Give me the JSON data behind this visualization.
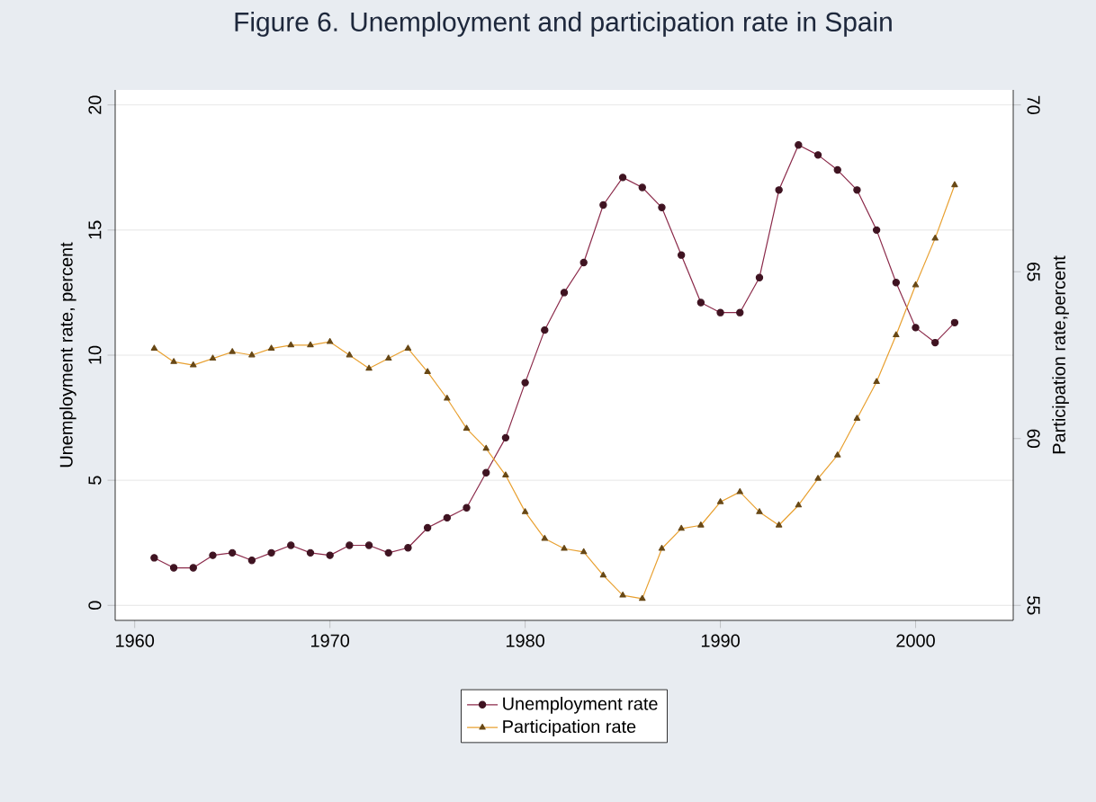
{
  "chart_data": {
    "type": "line",
    "title": "Figure 6. Unemployment and participation rate in Spain",
    "ylabel": "Unemployment rate, percent",
    "y2label": "Participation rate,percent",
    "x": [
      1961,
      1962,
      1963,
      1964,
      1965,
      1966,
      1967,
      1968,
      1969,
      1970,
      1971,
      1972,
      1973,
      1974,
      1975,
      1976,
      1977,
      1978,
      1979,
      1980,
      1981,
      1982,
      1983,
      1984,
      1985,
      1986,
      1987,
      1988,
      1989,
      1990,
      1991,
      1992,
      1993,
      1994,
      1995,
      1996,
      1997,
      1998,
      1999,
      2000,
      2001,
      2002
    ],
    "series": [
      {
        "name": "Unemployment rate",
        "color": "#8b2a4a",
        "marker": "circle",
        "values": [
          1.9,
          1.5,
          1.5,
          2.0,
          2.1,
          1.8,
          2.1,
          2.4,
          2.1,
          2.0,
          2.4,
          2.4,
          2.1,
          2.3,
          3.1,
          3.5,
          3.9,
          5.3,
          6.7,
          8.9,
          11.0,
          12.5,
          13.7,
          16.0,
          17.1,
          16.7,
          15.9,
          14.0,
          12.1,
          11.7,
          11.7,
          13.1,
          16.6,
          18.4,
          18.0,
          17.4,
          16.6,
          15.0,
          12.9,
          11.1,
          10.5,
          11.3
        ]
      },
      {
        "name": "Participation rate",
        "color": "#e8a030",
        "marker": "triangle",
        "axis": "y2",
        "values": [
          62.7,
          62.3,
          62.2,
          62.4,
          62.6,
          62.5,
          62.7,
          62.8,
          62.8,
          62.9,
          62.5,
          62.1,
          62.4,
          62.7,
          62.0,
          61.2,
          60.3,
          59.7,
          58.9,
          57.8,
          57.0,
          56.7,
          56.6,
          55.9,
          55.3,
          55.2,
          56.7,
          57.3,
          57.4,
          58.1,
          58.4,
          57.8,
          57.4,
          58.0,
          58.8,
          59.5,
          60.6,
          61.7,
          63.1,
          64.6,
          66.0,
          67.6
        ]
      }
    ],
    "xlim": [
      1959,
      2005
    ],
    "xticks": [
      1960,
      1970,
      1980,
      1990,
      2000
    ],
    "ylim": [
      -0.6,
      20.6
    ],
    "yticks": [
      0,
      5,
      10,
      15,
      20
    ],
    "y2lim": [
      54.55,
      70.45
    ],
    "y2ticks": [
      55,
      60,
      65,
      70
    ],
    "grid": "y",
    "legend": "bottom",
    "line_style": "solid"
  }
}
